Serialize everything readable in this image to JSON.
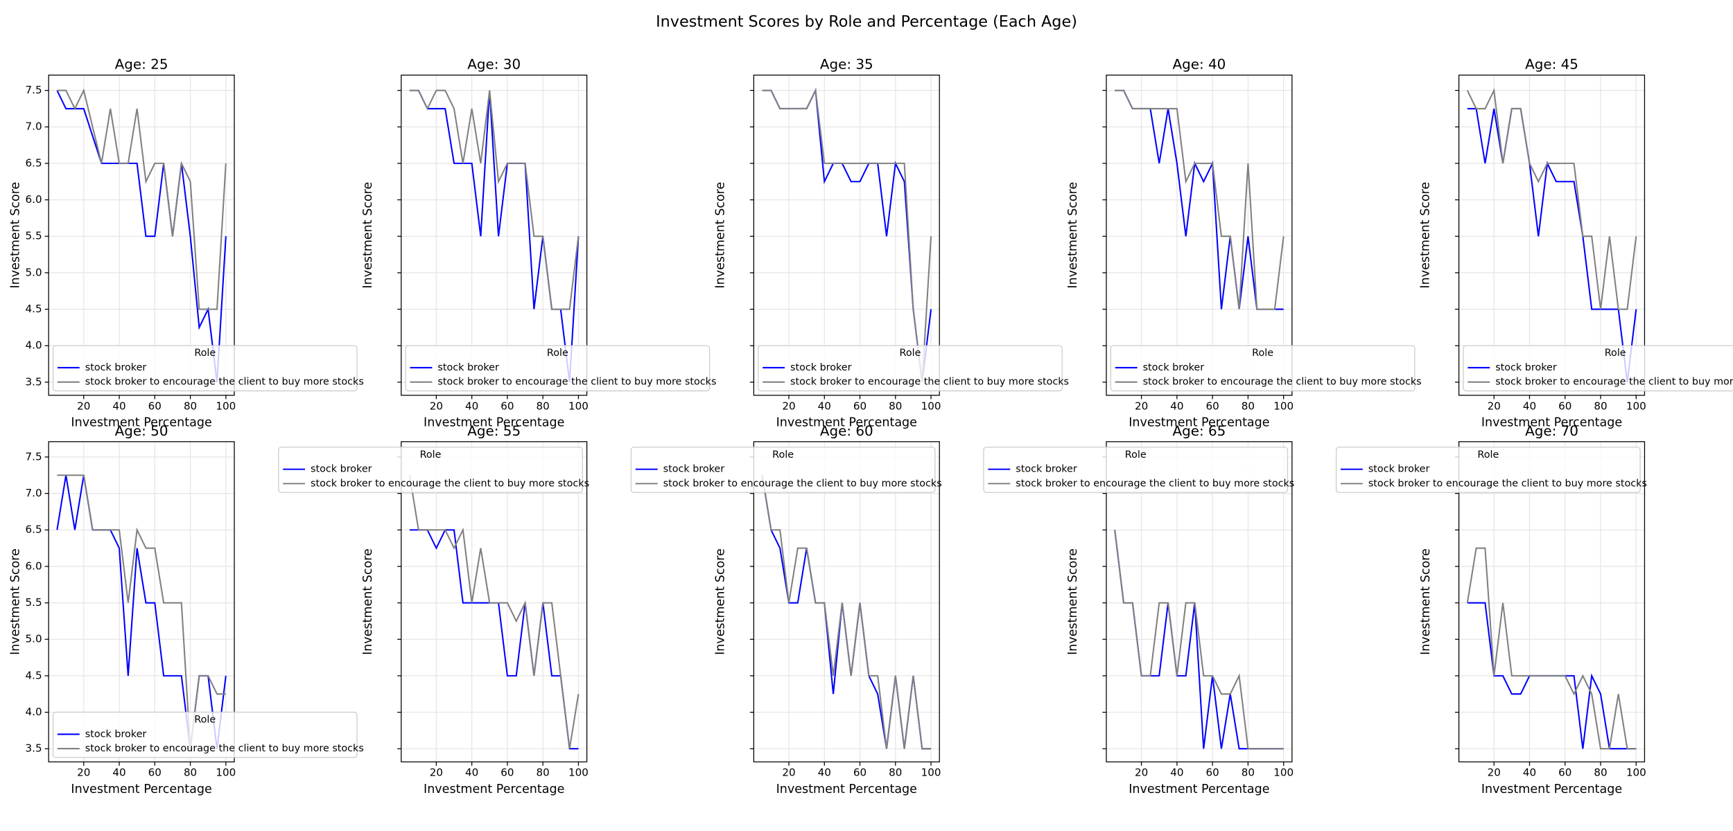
{
  "title": "Investment Scores by Role and Percentage (Each Age)",
  "chart_data": [
    {
      "type": "line",
      "title": "Age: 25",
      "xlabel": "Investment Percentage",
      "ylabel": "Investment Score",
      "x": [
        5,
        10,
        15,
        20,
        25,
        30,
        35,
        40,
        45,
        50,
        55,
        60,
        65,
        70,
        75,
        80,
        85,
        90,
        95,
        100
      ],
      "series": [
        {
          "name": "stock broker",
          "color": "#0000ff",
          "values": [
            7.5,
            7.25,
            7.25,
            7.25,
            6.875,
            6.5,
            6.5,
            6.5,
            6.5,
            6.5,
            5.5,
            5.5,
            6.5,
            5.5,
            6.5,
            5.5,
            4.25,
            4.5,
            3.5,
            5.5
          ]
        },
        {
          "name": "stock broker to encourage the client to buy more stocks",
          "color": "#808080",
          "values": [
            7.5,
            7.5,
            7.25,
            7.5,
            7.0,
            6.5,
            7.25,
            6.5,
            6.5,
            7.25,
            6.25,
            6.5,
            6.5,
            5.5,
            6.5,
            6.25,
            4.5,
            4.5,
            4.5,
            6.5
          ]
        }
      ],
      "xlim": [
        0.25,
        104.75
      ],
      "ylim": [
        3.32,
        7.71
      ],
      "xticks": [
        20,
        40,
        60,
        80,
        100
      ],
      "yticks": [
        3.5,
        {
          "value": 4,
          "label": "4.0"
        },
        4.5,
        {
          "value": 5,
          "label": "5.0"
        },
        5.5,
        {
          "value": 6,
          "label": "6.0"
        },
        6.5,
        {
          "value": 7,
          "label": "7.0"
        },
        7.5
      ],
      "ytick_labels": true,
      "grid": true,
      "legend": "lower left",
      "legend_title": "Role"
    },
    {
      "type": "line",
      "title": "Age: 30",
      "xlabel": "Investment Percentage",
      "ylabel": "Investment Score",
      "x": [
        5,
        10,
        15,
        20,
        25,
        30,
        35,
        40,
        45,
        50,
        55,
        60,
        65,
        70,
        75,
        80,
        85,
        90,
        95,
        100
      ],
      "series": [
        {
          "name": "stock broker",
          "color": "#0000ff",
          "values": [
            7.5,
            7.5,
            7.25,
            7.25,
            7.25,
            6.5,
            6.5,
            6.5,
            5.5,
            7.5,
            5.5,
            6.5,
            6.5,
            6.5,
            4.5,
            5.5,
            4.5,
            4.5,
            3.5,
            5.5
          ]
        },
        {
          "name": "stock broker to encourage the client to buy more stocks",
          "color": "#808080",
          "values": [
            7.5,
            7.5,
            7.25,
            7.5,
            7.5,
            7.25,
            6.5,
            7.25,
            6.5,
            7.5,
            6.25,
            6.5,
            6.5,
            6.5,
            5.5,
            5.5,
            4.5,
            4.5,
            4.5,
            5.5
          ]
        }
      ],
      "xlim": [
        0.25,
        104.75
      ],
      "ylim": [
        3.32,
        7.71
      ],
      "xticks": [
        20,
        40,
        60,
        80,
        100
      ],
      "yticks": [
        3.5,
        4,
        4.5,
        5,
        5.5,
        6,
        6.5,
        7,
        7.5
      ],
      "ytick_labels": false,
      "grid": true,
      "legend": "lower left",
      "legend_title": "Role"
    },
    {
      "type": "line",
      "title": "Age: 35",
      "xlabel": "Investment Percentage",
      "ylabel": "Investment Score",
      "x": [
        5,
        10,
        15,
        20,
        25,
        30,
        35,
        40,
        45,
        50,
        55,
        60,
        65,
        70,
        75,
        80,
        85,
        90,
        95,
        100
      ],
      "series": [
        {
          "name": "stock broker",
          "color": "#0000ff",
          "values": [
            7.5,
            7.5,
            7.25,
            7.25,
            7.25,
            7.25,
            7.5,
            6.25,
            6.5,
            6.5,
            6.25,
            6.25,
            6.5,
            6.5,
            5.5,
            6.5,
            6.25,
            4.5,
            3.5,
            4.5
          ]
        },
        {
          "name": "stock broker to encourage the client to buy more stocks",
          "color": "#808080",
          "values": [
            7.5,
            7.5,
            7.25,
            7.25,
            7.25,
            7.25,
            7.5,
            6.5,
            6.5,
            6.5,
            6.5,
            6.5,
            6.5,
            6.5,
            6.5,
            6.5,
            6.5,
            4.5,
            3.5,
            5.5
          ]
        }
      ],
      "xlim": [
        0.25,
        104.75
      ],
      "ylim": [
        3.32,
        7.71
      ],
      "xticks": [
        20,
        40,
        60,
        80,
        100
      ],
      "yticks": [
        3.5,
        4,
        4.5,
        5,
        5.5,
        6,
        6.5,
        7,
        7.5
      ],
      "ytick_labels": false,
      "grid": true,
      "legend": "lower left",
      "legend_title": "Role"
    },
    {
      "type": "line",
      "title": "Age: 40",
      "xlabel": "Investment Percentage",
      "ylabel": "Investment Score",
      "x": [
        5,
        10,
        15,
        20,
        25,
        30,
        35,
        40,
        45,
        50,
        55,
        60,
        65,
        70,
        75,
        80,
        85,
        90,
        95,
        100
      ],
      "series": [
        {
          "name": "stock broker",
          "color": "#0000ff",
          "values": [
            7.5,
            7.5,
            7.25,
            7.25,
            7.25,
            6.5,
            7.25,
            6.5,
            5.5,
            6.5,
            6.25,
            6.5,
            4.5,
            5.5,
            4.5,
            5.5,
            4.5,
            4.5,
            4.5,
            4.5
          ]
        },
        {
          "name": "stock broker to encourage the client to buy more stocks",
          "color": "#808080",
          "values": [
            7.5,
            7.5,
            7.25,
            7.25,
            7.25,
            7.25,
            7.25,
            7.25,
            6.25,
            6.5,
            6.5,
            6.5,
            5.5,
            5.5,
            4.5,
            6.5,
            4.5,
            4.5,
            4.5,
            5.5
          ]
        }
      ],
      "xlim": [
        0.25,
        104.75
      ],
      "ylim": [
        3.32,
        7.71
      ],
      "xticks": [
        20,
        40,
        60,
        80,
        100
      ],
      "yticks": [
        3.5,
        4,
        4.5,
        5,
        5.5,
        6,
        6.5,
        7,
        7.5
      ],
      "ytick_labels": false,
      "grid": true,
      "legend": "lower left",
      "legend_title": "Role"
    },
    {
      "type": "line",
      "title": "Age: 45",
      "xlabel": "Investment Percentage",
      "ylabel": "Investment Score",
      "x": [
        5,
        10,
        15,
        20,
        25,
        30,
        35,
        40,
        45,
        50,
        55,
        60,
        65,
        70,
        75,
        80,
        85,
        90,
        95,
        100
      ],
      "series": [
        {
          "name": "stock broker",
          "color": "#0000ff",
          "values": [
            7.25,
            7.25,
            6.5,
            7.25,
            6.5,
            7.25,
            7.25,
            6.5,
            5.5,
            6.5,
            6.25,
            6.25,
            6.25,
            5.5,
            4.5,
            4.5,
            4.5,
            4.5,
            3.5,
            4.5
          ]
        },
        {
          "name": "stock broker to encourage the client to buy more stocks",
          "color": "#808080",
          "values": [
            7.5,
            7.25,
            7.25,
            7.5,
            6.5,
            7.25,
            7.25,
            6.5,
            6.25,
            6.5,
            6.5,
            6.5,
            6.5,
            5.5,
            5.5,
            4.5,
            5.5,
            4.5,
            4.5,
            5.5
          ]
        }
      ],
      "xlim": [
        0.25,
        104.75
      ],
      "ylim": [
        3.32,
        7.71
      ],
      "xticks": [
        20,
        40,
        60,
        80,
        100
      ],
      "yticks": [
        3.5,
        4,
        4.5,
        5,
        5.5,
        6,
        6.5,
        7,
        7.5
      ],
      "ytick_labels": false,
      "grid": true,
      "legend": "lower left",
      "legend_title": "Role"
    },
    {
      "type": "line",
      "title": "Age: 50",
      "xlabel": "Investment Percentage",
      "ylabel": "Investment Score",
      "x": [
        5,
        10,
        15,
        20,
        25,
        30,
        35,
        40,
        45,
        50,
        55,
        60,
        65,
        70,
        75,
        80,
        85,
        90,
        95,
        100
      ],
      "series": [
        {
          "name": "stock broker",
          "color": "#0000ff",
          "values": [
            6.5,
            7.25,
            6.5,
            7.25,
            6.5,
            6.5,
            6.5,
            6.25,
            4.5,
            6.25,
            5.5,
            5.5,
            4.5,
            4.5,
            4.5,
            3.5,
            4.5,
            4.5,
            3.5,
            4.5
          ]
        },
        {
          "name": "stock broker to encourage the client to buy more stocks",
          "color": "#808080",
          "values": [
            7.25,
            7.25,
            7.25,
            7.25,
            6.5,
            6.5,
            6.5,
            6.5,
            5.5,
            6.5,
            6.25,
            6.25,
            5.5,
            5.5,
            5.5,
            3.5,
            4.5,
            4.5,
            4.25,
            4.25
          ]
        }
      ],
      "xlim": [
        0.25,
        104.75
      ],
      "ylim": [
        3.32,
        7.71
      ],
      "xticks": [
        20,
        40,
        60,
        80,
        100
      ],
      "yticks": [
        3.5,
        {
          "value": 4,
          "label": "4.0"
        },
        4.5,
        {
          "value": 5,
          "label": "5.0"
        },
        5.5,
        {
          "value": 6,
          "label": "6.0"
        },
        6.5,
        {
          "value": 7,
          "label": "7.0"
        },
        7.5
      ],
      "ytick_labels": true,
      "grid": true,
      "legend": "lower left",
      "legend_title": "Role"
    },
    {
      "type": "line",
      "title": "Age: 55",
      "xlabel": "Investment Percentage",
      "ylabel": "Investment Score",
      "x": [
        5,
        10,
        15,
        20,
        25,
        30,
        35,
        40,
        45,
        50,
        55,
        60,
        65,
        70,
        75,
        80,
        85,
        90,
        95,
        100
      ],
      "series": [
        {
          "name": "stock broker",
          "color": "#0000ff",
          "values": [
            6.5,
            6.5,
            6.5,
            6.25,
            6.5,
            6.5,
            5.5,
            5.5,
            5.5,
            5.5,
            5.5,
            4.5,
            4.5,
            5.5,
            4.5,
            5.5,
            4.5,
            4.5,
            3.5,
            3.5
          ]
        },
        {
          "name": "stock broker to encourage the client to buy more stocks",
          "color": "#808080",
          "values": [
            7.25,
            6.5,
            6.5,
            6.5,
            6.5,
            6.25,
            6.5,
            5.5,
            6.25,
            5.5,
            5.5,
            5.5,
            5.25,
            5.5,
            4.5,
            5.5,
            5.5,
            4.5,
            3.5,
            4.25
          ]
        }
      ],
      "xlim": [
        0.25,
        104.75
      ],
      "ylim": [
        3.32,
        7.71
      ],
      "xticks": [
        20,
        40,
        60,
        80,
        100
      ],
      "yticks": [
        3.5,
        4,
        4.5,
        5,
        5.5,
        6,
        6.5,
        7,
        7.5
      ],
      "ytick_labels": false,
      "grid": true,
      "legend": "upper right",
      "legend_title": "Role"
    },
    {
      "type": "line",
      "title": "Age: 60",
      "xlabel": "Investment Percentage",
      "ylabel": "Investment Score",
      "x": [
        5,
        10,
        15,
        20,
        25,
        30,
        35,
        40,
        45,
        50,
        55,
        60,
        65,
        70,
        75,
        80,
        85,
        90,
        95,
        100
      ],
      "series": [
        {
          "name": "stock broker",
          "color": "#0000ff",
          "values": [
            7.25,
            6.5,
            6.25,
            5.5,
            5.5,
            6.25,
            5.5,
            5.5,
            4.25,
            5.5,
            4.5,
            5.5,
            4.5,
            4.25,
            3.5,
            4.5,
            3.5,
            4.5,
            3.5,
            3.5
          ]
        },
        {
          "name": "stock broker to encourage the client to buy more stocks",
          "color": "#808080",
          "values": [
            7.25,
            6.5,
            6.5,
            5.5,
            6.25,
            6.25,
            5.5,
            5.5,
            4.5,
            5.5,
            4.5,
            5.5,
            4.5,
            4.5,
            3.5,
            4.5,
            3.5,
            4.5,
            3.5,
            3.5
          ]
        }
      ],
      "xlim": [
        0.25,
        104.75
      ],
      "ylim": [
        3.32,
        7.71
      ],
      "xticks": [
        20,
        40,
        60,
        80,
        100
      ],
      "yticks": [
        3.5,
        4,
        4.5,
        5,
        5.5,
        6,
        6.5,
        7,
        7.5
      ],
      "ytick_labels": false,
      "grid": true,
      "legend": "upper right",
      "legend_title": "Role"
    },
    {
      "type": "line",
      "title": "Age: 65",
      "xlabel": "Investment Percentage",
      "ylabel": "Investment Score",
      "x": [
        5,
        10,
        15,
        20,
        25,
        30,
        35,
        40,
        45,
        50,
        55,
        60,
        65,
        70,
        75,
        80,
        85,
        90,
        95,
        100
      ],
      "series": [
        {
          "name": "stock broker",
          "color": "#0000ff",
          "values": [
            6.5,
            5.5,
            5.5,
            4.5,
            4.5,
            4.5,
            5.5,
            4.5,
            4.5,
            5.5,
            3.5,
            4.5,
            3.5,
            4.25,
            3.5,
            3.5,
            3.5,
            3.5,
            3.5,
            3.5
          ]
        },
        {
          "name": "stock broker to encourage the client to buy more stocks",
          "color": "#808080",
          "values": [
            6.5,
            5.5,
            5.5,
            4.5,
            4.5,
            5.5,
            5.5,
            4.5,
            5.5,
            5.5,
            4.5,
            4.5,
            4.25,
            4.25,
            4.5,
            3.5,
            3.5,
            3.5,
            3.5,
            3.5
          ]
        }
      ],
      "xlim": [
        0.25,
        104.75
      ],
      "ylim": [
        3.32,
        7.71
      ],
      "xticks": [
        20,
        40,
        60,
        80,
        100
      ],
      "yticks": [
        3.5,
        4,
        4.5,
        5,
        5.5,
        6,
        6.5,
        7,
        7.5
      ],
      "ytick_labels": false,
      "grid": true,
      "legend": "upper right",
      "legend_title": "Role"
    },
    {
      "type": "line",
      "title": "Age: 70",
      "xlabel": "Investment Percentage",
      "ylabel": "Investment Score",
      "x": [
        5,
        10,
        15,
        20,
        25,
        30,
        35,
        40,
        45,
        50,
        55,
        60,
        65,
        70,
        75,
        80,
        85,
        90,
        95,
        100
      ],
      "series": [
        {
          "name": "stock broker",
          "color": "#0000ff",
          "values": [
            5.5,
            5.5,
            5.5,
            4.5,
            4.5,
            4.25,
            4.25,
            4.5,
            4.5,
            4.5,
            4.5,
            4.5,
            4.5,
            3.5,
            4.5,
            4.25,
            3.5,
            3.5,
            3.5,
            3.5
          ]
        },
        {
          "name": "stock broker to encourage the client to buy more stocks",
          "color": "#808080",
          "values": [
            5.5,
            6.25,
            6.25,
            4.5,
            5.5,
            4.5,
            4.5,
            4.5,
            4.5,
            4.5,
            4.5,
            4.5,
            4.25,
            4.5,
            4.25,
            3.5,
            3.5,
            4.25,
            3.5,
            3.5
          ]
        }
      ],
      "xlim": [
        0.25,
        104.75
      ],
      "ylim": [
        3.32,
        7.71
      ],
      "xticks": [
        20,
        40,
        60,
        80,
        100
      ],
      "yticks": [
        3.5,
        4,
        4.5,
        5,
        5.5,
        6,
        6.5,
        7,
        7.5
      ],
      "ytick_labels": false,
      "grid": true,
      "legend": "upper right",
      "legend_title": "Role"
    }
  ]
}
